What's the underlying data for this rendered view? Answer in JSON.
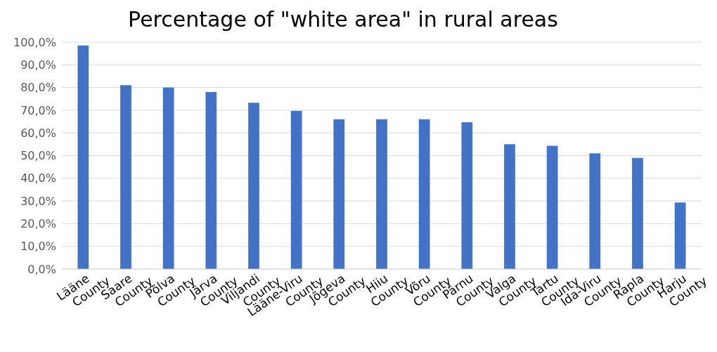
{
  "chart_data": {
    "type": "bar",
    "title": "Percentage of \"white area\" in rural areas",
    "categories": [
      "Lääne County",
      "Saare County",
      "Põlva County",
      "Järva County",
      "Viljandi County",
      "Lääne-Viru County",
      "Jõgeva County",
      "Hiiu County",
      "Võru County",
      "Pärnu County",
      "Valga County",
      "Tartu County",
      "Ida-Viru County",
      "Rapla County",
      "Harju County"
    ],
    "values": [
      98.5,
      81,
      80,
      78,
      73.3,
      69.7,
      66,
      66,
      66,
      64.7,
      55,
      54.3,
      51,
      49,
      29.3
    ],
    "color": "#4472c4",
    "ylim": [
      0,
      100
    ],
    "yticks": [
      {
        "value": 0,
        "label": "0,0%"
      },
      {
        "value": 10,
        "label": "10,0%"
      },
      {
        "value": 20,
        "label": "20,0%"
      },
      {
        "value": 30,
        "label": "30,0%"
      },
      {
        "value": 40,
        "label": "40,0%"
      },
      {
        "value": 50,
        "label": "50,0%"
      },
      {
        "value": 60,
        "label": "60,0%"
      },
      {
        "value": 70,
        "label": "70,0%"
      },
      {
        "value": 80,
        "label": "80,0%"
      },
      {
        "value": 90,
        "label": "90,0%"
      },
      {
        "value": 100,
        "label": "100,0%"
      }
    ],
    "grid": "y"
  }
}
